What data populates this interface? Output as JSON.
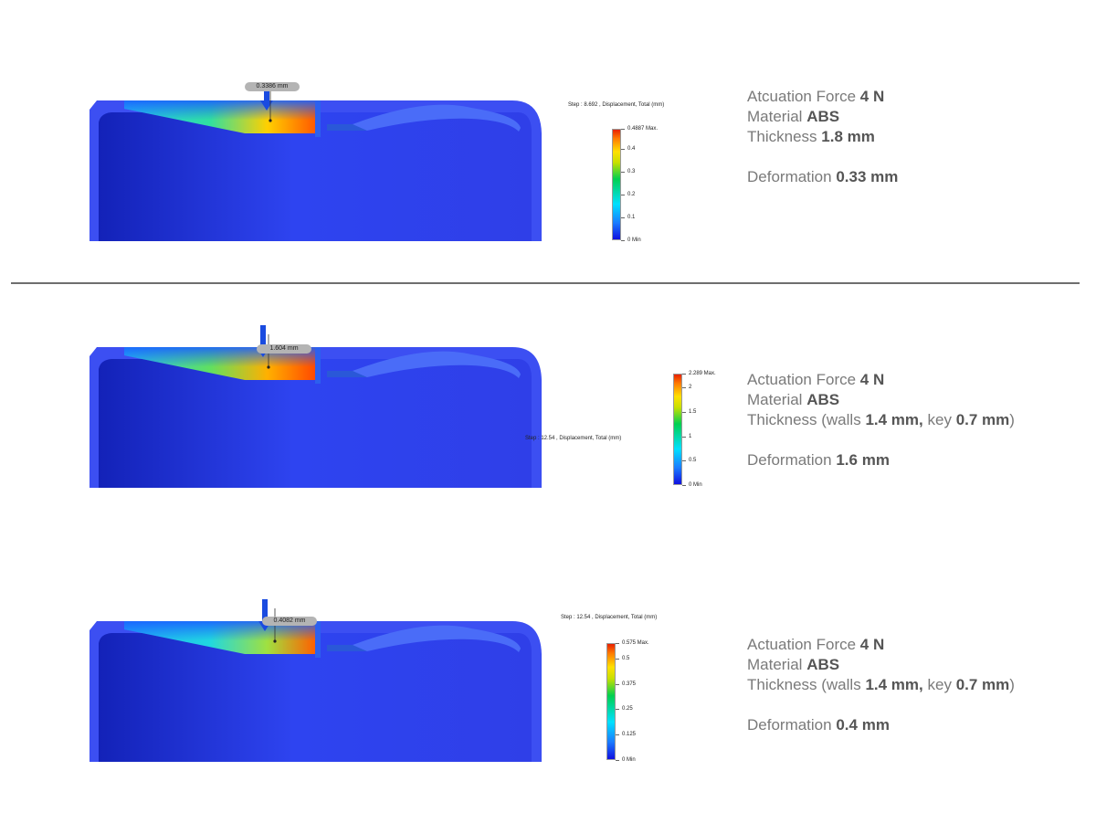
{
  "panels": [
    {
      "probe_label": "0.3386 mm",
      "show_arrow": true,
      "legend": {
        "title": "Step : 8.692 , Displacement, Total (mm)",
        "max": 0.4887,
        "max_label": "0.4887 Max.",
        "min_label": "0 Min",
        "ticks": [
          "0.1",
          "0.2",
          "0.3",
          "0.4"
        ]
      },
      "info": {
        "force_label": "Atcuation Force",
        "force_value": "4 N",
        "material_label": "Material",
        "material_value": "ABS",
        "thickness_label": "Thickness",
        "thickness_value": "1.8 mm",
        "deformation_label": "Deformation",
        "deformation_value": "0.33 mm"
      }
    },
    {
      "probe_label": "1.604 mm",
      "show_arrow": true,
      "legend": {
        "title": "Step : 12.54 , Displacement, Total (mm)",
        "max": 2.289,
        "max_label": "2.289 Max.",
        "min_label": "0 Min",
        "ticks": [
          "0.5",
          "1",
          "1.5",
          "2"
        ]
      },
      "info": {
        "force_label": "Actuation Force",
        "force_value": "4 N",
        "material_label": "Material",
        "material_value": "ABS",
        "thickness_label": "Thickness (walls",
        "thickness_walls": "1.4 mm,",
        "thickness_key_label": "key",
        "thickness_key": "0.7 mm",
        "thickness_close": ")",
        "deformation_label": "Deformation",
        "deformation_value": "1.6 mm"
      }
    },
    {
      "probe_label": "0.4082 mm",
      "show_arrow": true,
      "legend": {
        "title": "Step : 12.54 , Displacement, Total (mm)",
        "max": 0.575,
        "max_label": "0.575 Max.",
        "min_label": "0 Min",
        "ticks": [
          "0.125",
          "0.25",
          "0.375",
          "0.5"
        ]
      },
      "info": {
        "force_label": "Actuation Force",
        "force_value": "4 N",
        "material_label": "Material",
        "material_value": "ABS",
        "thickness_label": "Thickness (walls",
        "thickness_walls": "1.4 mm,",
        "thickness_key_label": "key",
        "thickness_key": "0.7 mm",
        "thickness_close": ")",
        "deformation_label": "Deformation",
        "deformation_value": "0.4 mm"
      }
    }
  ]
}
